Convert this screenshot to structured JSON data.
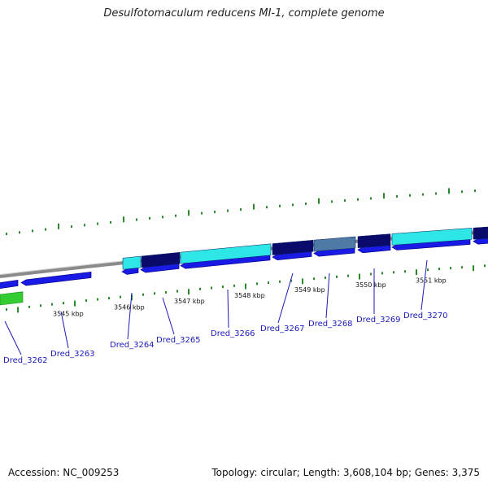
{
  "title": "Desulfotomaculum reducens MI-1, complete genome",
  "accession_text": "Accession: NC_009253",
  "stats_text": "Topology: circular; Length: 3,608,104 bp; Genes: 3,375",
  "colors": {
    "backbone": "#8a8a8a",
    "gene_blue": "#1a1ae6",
    "gene_cyan": "#2ee6e6",
    "gene_navy": "#0a0a6a",
    "gene_slate": "#4f7aa6",
    "gene_green": "#33cc33",
    "tick": "#2a8a2a",
    "label": "#1a1ab8"
  },
  "kbp_labels": [
    {
      "text": "3545 kbp"
    },
    {
      "text": "3546 kbp"
    },
    {
      "text": "3547 kbp"
    },
    {
      "text": "3548 kbp"
    },
    {
      "text": "3549 kbp"
    },
    {
      "text": "3550 kbp"
    },
    {
      "text": "3551 kbp"
    }
  ],
  "gene_labels": [
    {
      "text": "Dred_3262"
    },
    {
      "text": "Dred_3263"
    },
    {
      "text": "Dred_3264"
    },
    {
      "text": "Dred_3265"
    },
    {
      "text": "Dred_3266"
    },
    {
      "text": "Dred_3267"
    },
    {
      "text": "Dred_3268"
    },
    {
      "text": "Dred_3269"
    },
    {
      "text": "Dred_3270"
    }
  ]
}
